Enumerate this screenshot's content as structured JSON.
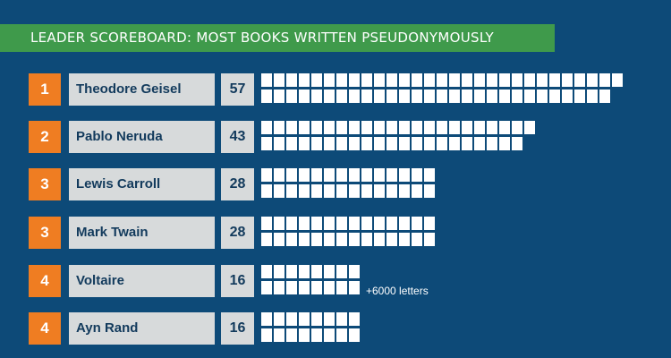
{
  "title": "LEADER SCOREBOARD: MOST BOOKS WRITTEN PSEUDONYMOUSLY",
  "colors": {
    "background": "#0d4a78",
    "banner": "#3f9a4b",
    "rank": "#ef7d22",
    "label_box": "#d7dadb",
    "cell": "#ffffff"
  },
  "chart_data": {
    "type": "bar",
    "title": "LEADER SCOREBOARD: MOST BOOKS WRITTEN PSEUDONYMOUSLY",
    "categories": [
      "Theodore Geisel",
      "Pablo Neruda",
      "Lewis Carroll",
      "Mark Twain",
      "Voltaire",
      "Ayn Rand"
    ],
    "values": [
      57,
      43,
      28,
      28,
      16,
      16
    ],
    "rows": [
      {
        "rank": "1",
        "name": "Theodore Geisel",
        "count": "57",
        "value": 57,
        "note": ""
      },
      {
        "rank": "2",
        "name": "Pablo Neruda",
        "count": "43",
        "value": 43,
        "note": ""
      },
      {
        "rank": "3",
        "name": "Lewis Carroll",
        "count": "28",
        "value": 28,
        "note": ""
      },
      {
        "rank": "3",
        "name": "Mark Twain",
        "count": "28",
        "value": 28,
        "note": ""
      },
      {
        "rank": "4",
        "name": "Voltaire",
        "count": "16",
        "value": 16,
        "note": "+6000 letters"
      },
      {
        "rank": "4",
        "name": "Ayn Rand",
        "count": "16",
        "value": 16,
        "note": ""
      }
    ]
  }
}
